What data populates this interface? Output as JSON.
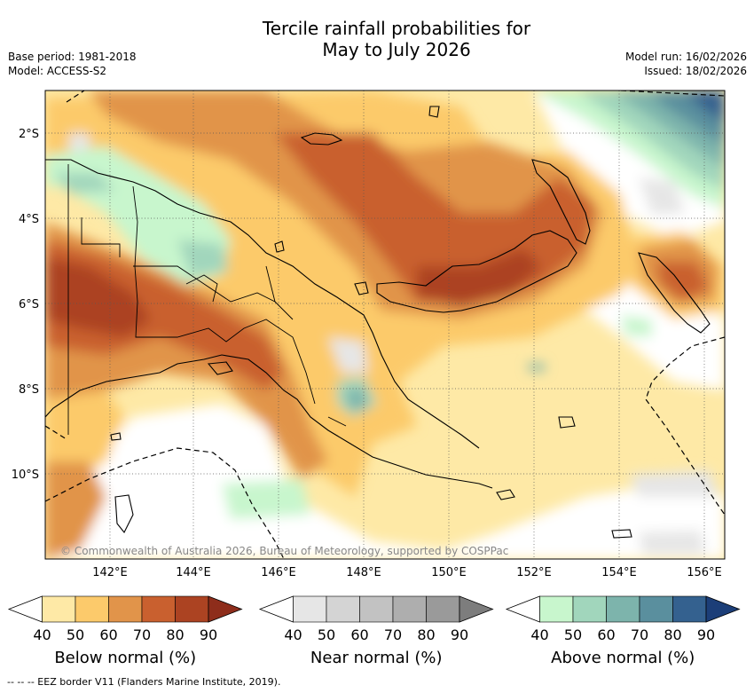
{
  "title": {
    "line1": "Tercile rainfall probabilities for",
    "line2": "May to July 2026"
  },
  "meta": {
    "base_period": "Base period: 1981-2018",
    "model": "Model: ACCESS-S2",
    "model_run": "Model run: 16/02/2026",
    "issued": "Issued: 18/02/2026"
  },
  "map": {
    "copyright": "© Commonwealth of Australia 2026, Bureau of Meteorology, supported by COSPPac",
    "lat_labels": [
      "2°S",
      "4°S",
      "6°S",
      "8°S",
      "10°S"
    ],
    "lon_labels": [
      "142°E",
      "144°E",
      "146°E",
      "148°E",
      "150°E",
      "152°E",
      "154°E",
      "156°E"
    ]
  },
  "colorbars": [
    {
      "name": "below",
      "title": "Below normal (%)",
      "ticks": [
        "40",
        "50",
        "60",
        "70",
        "80",
        "90"
      ],
      "colors": [
        "#ffffff",
        "#fee9a6",
        "#fcca6b",
        "#e1944a",
        "#c9602f",
        "#ac4322",
        "#8e2d1b"
      ]
    },
    {
      "name": "near",
      "title": "Near normal (%)",
      "ticks": [
        "40",
        "50",
        "60",
        "70",
        "80",
        "90"
      ],
      "colors": [
        "#ffffff",
        "#e6e6e6",
        "#d4d4d4",
        "#c2c2c2",
        "#aeaeae",
        "#9a9a9a",
        "#7d7d7d"
      ]
    },
    {
      "name": "above",
      "title": "Above normal (%)",
      "ticks": [
        "40",
        "50",
        "60",
        "70",
        "80",
        "90"
      ],
      "colors": [
        "#ffffff",
        "#c8f6cd",
        "#a1d6bc",
        "#7db4ac",
        "#5a8f9e",
        "#34618f",
        "#1c3e78"
      ]
    }
  ],
  "footer": "--  --  -- EEZ border V11 (Flanders Marine Institute, 2019)."
}
